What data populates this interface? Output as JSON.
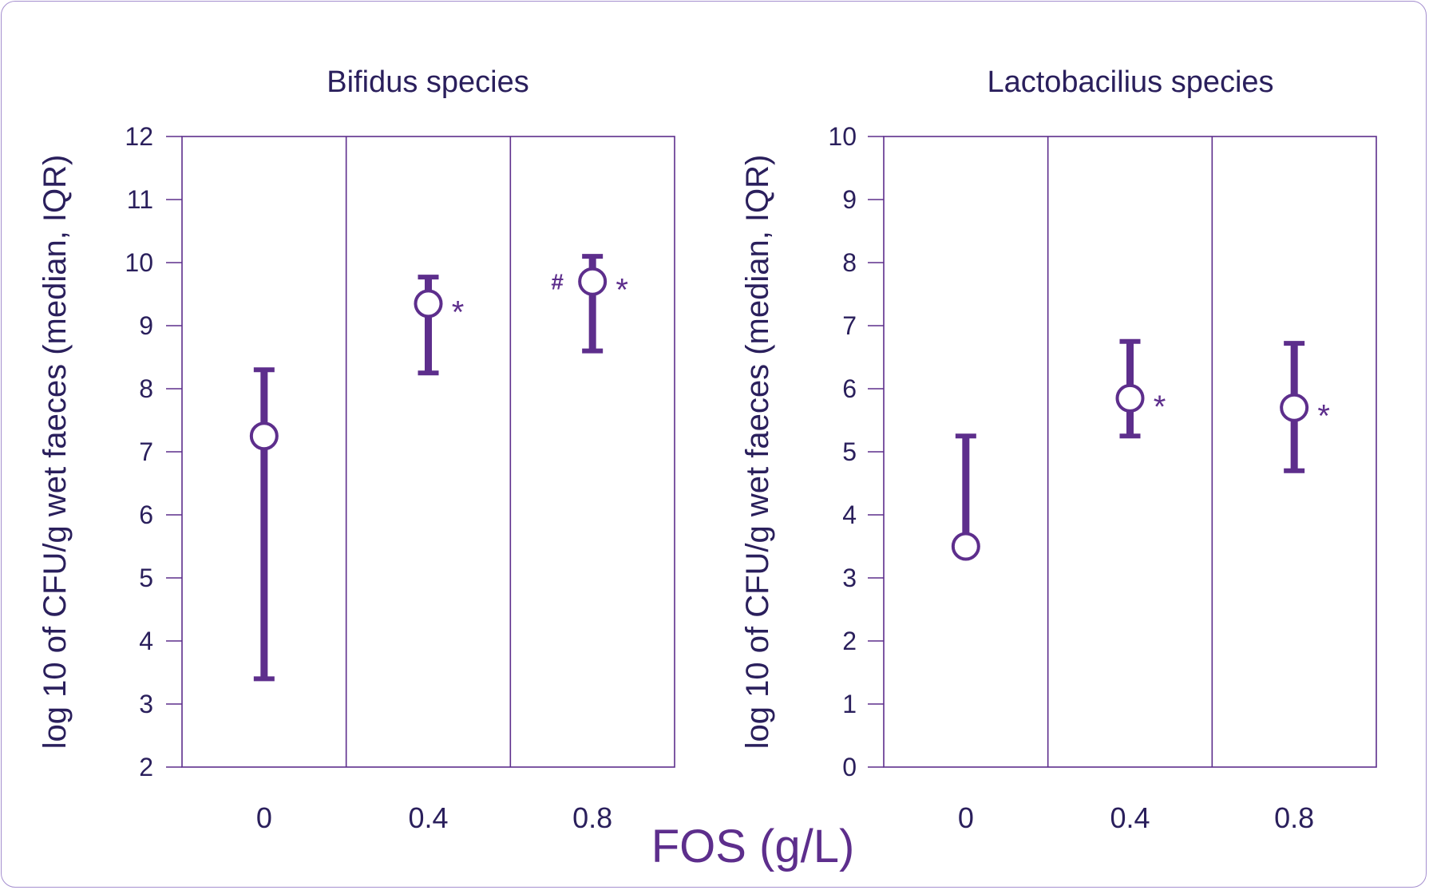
{
  "colors": {
    "accent": "#5d2e8c",
    "text": "#2a1f5c",
    "frame": "#a58fcf"
  },
  "x_axis_title": "FOS (g/L)",
  "y_axis_title": "log 10 of CFU/g wet faeces (median, IQR)",
  "chart_data": [
    {
      "type": "scatter",
      "title": "Bifidus species",
      "xlabel": "FOS (g/L)",
      "ylabel": "log 10 of CFU/g wet faeces (median, IQR)",
      "categories": [
        "0",
        "0.4",
        "0.8"
      ],
      "ylim": [
        2,
        12
      ],
      "yticks": [
        "2",
        "3",
        "4",
        "5",
        "6",
        "7",
        "8",
        "9",
        "10",
        "11",
        "12"
      ],
      "median": [
        7.25,
        9.35,
        9.7
      ],
      "iqr_low": [
        3.4,
        8.25,
        8.6
      ],
      "iqr_high": [
        8.3,
        9.77,
        10.1
      ],
      "annotations_left": [
        "",
        "",
        "#"
      ],
      "annotations_right": [
        "",
        "*",
        "*"
      ],
      "grid": false
    },
    {
      "type": "scatter",
      "title": "Lactobacilius species",
      "xlabel": "FOS (g/L)",
      "ylabel": "log 10 of CFU/g wet faeces (median, IQR)",
      "categories": [
        "0",
        "0.4",
        "0.8"
      ],
      "ylim": [
        0,
        10
      ],
      "yticks": [
        "0",
        "1",
        "2",
        "3",
        "4",
        "5",
        "6",
        "7",
        "8",
        "9",
        "10"
      ],
      "median": [
        3.5,
        5.85,
        5.7
      ],
      "iqr_low": [
        3.5,
        5.25,
        4.7
      ],
      "iqr_high": [
        5.25,
        6.75,
        6.72
      ],
      "annotations_left": [
        "",
        "",
        ""
      ],
      "annotations_right": [
        "",
        "*",
        "*"
      ],
      "grid": false
    }
  ]
}
